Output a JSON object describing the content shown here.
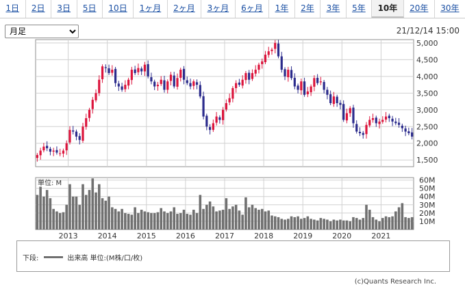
{
  "tabs": [
    "1日",
    "2日",
    "3日",
    "5日",
    "10日",
    "1ヶ月",
    "2ヶ月",
    "3ヶ月",
    "6ヶ月",
    "1年",
    "2年",
    "3年",
    "5年",
    "10年",
    "20年",
    "30年"
  ],
  "active_tab": "10年",
  "period_select": {
    "value": "月足",
    "options": [
      "月足"
    ]
  },
  "timestamp": "21/12/14 15:00",
  "legend": {
    "prefix": "下段:",
    "label": "出来高 単位:(M株/口/枚)"
  },
  "copyright": "(c)Quants Research Inc.",
  "colors": {
    "up": "#dc143c",
    "down": "#2b2b8c",
    "volume": "#707070",
    "grid": "#d0d0d0"
  },
  "chart_data": [
    {
      "type": "candlestick",
      "title": "",
      "frequency": "monthly",
      "x_range": [
        "2012-03",
        "2021-12"
      ],
      "xticks": [
        "2013",
        "2014",
        "2015",
        "2016",
        "2017",
        "2018",
        "2019",
        "2020",
        "2021"
      ],
      "yticks": [
        "1,500",
        "2,000",
        "2,500",
        "3,000",
        "3,500",
        "4,000",
        "4,500",
        "5,000"
      ],
      "ylim": [
        1300,
        5100
      ],
      "grid": true,
      "close": [
        1650,
        1780,
        1900,
        1850,
        1750,
        1780,
        1720,
        1700,
        1780,
        2000,
        2400,
        2350,
        2200,
        2100,
        2500,
        2750,
        3000,
        3300,
        3500,
        3900,
        4300,
        4250,
        4100,
        4200,
        3800,
        3700,
        3600,
        3750,
        3900,
        4200,
        4100,
        4250,
        4150,
        4350,
        4000,
        3850,
        3700,
        3750,
        3900,
        3600,
        3850,
        4050,
        3700,
        3950,
        4200,
        3900,
        3800,
        3700,
        3850,
        3750,
        3400,
        2800,
        2500,
        2400,
        2600,
        2800,
        2700,
        3000,
        3200,
        3350,
        3650,
        3800,
        3750,
        3900,
        4100,
        3900,
        4100,
        4200,
        4350,
        4450,
        4650,
        4750,
        4800,
        5000,
        4600,
        4200,
        4000,
        4200,
        3950,
        3700,
        3600,
        3850,
        3450,
        3550,
        3700,
        3950,
        3800,
        3850,
        3600,
        3450,
        3200,
        3400,
        3200,
        3150,
        2700,
        2900,
        3050,
        2600,
        2350,
        2300,
        2250,
        2550,
        2700,
        2750,
        2600,
        2650,
        2700,
        2800,
        2750,
        2650,
        2600,
        2550,
        2450,
        2350,
        2300,
        2200
      ]
    },
    {
      "type": "bar",
      "ylabel": "単位: M",
      "yticks": [
        "10M",
        "20M",
        "30M",
        "40M",
        "50M",
        "60M"
      ],
      "ylim": [
        0,
        63
      ],
      "grid": true,
      "values": [
        42,
        52,
        40,
        48,
        38,
        25,
        22,
        20,
        21,
        30,
        55,
        40,
        40,
        30,
        55,
        42,
        48,
        62,
        45,
        55,
        38,
        35,
        40,
        27,
        25,
        22,
        25,
        20,
        19,
        18,
        27,
        20,
        24,
        22,
        21,
        20,
        20,
        21,
        26,
        22,
        20,
        22,
        27,
        19,
        20,
        24,
        19,
        18,
        24,
        20,
        42,
        25,
        30,
        34,
        28,
        22,
        23,
        24,
        38,
        25,
        28,
        30,
        23,
        18,
        39,
        27,
        30,
        26,
        24,
        25,
        22,
        23,
        17,
        16,
        15,
        13,
        12,
        13,
        16,
        15,
        16,
        13,
        14,
        16,
        13,
        12,
        11,
        14,
        13,
        12,
        10,
        12,
        11,
        12,
        11,
        11,
        10,
        15,
        14,
        12,
        14,
        30,
        24,
        15,
        12,
        10,
        14,
        16,
        15,
        16,
        22,
        27,
        32,
        15,
        14,
        15
      ]
    }
  ]
}
